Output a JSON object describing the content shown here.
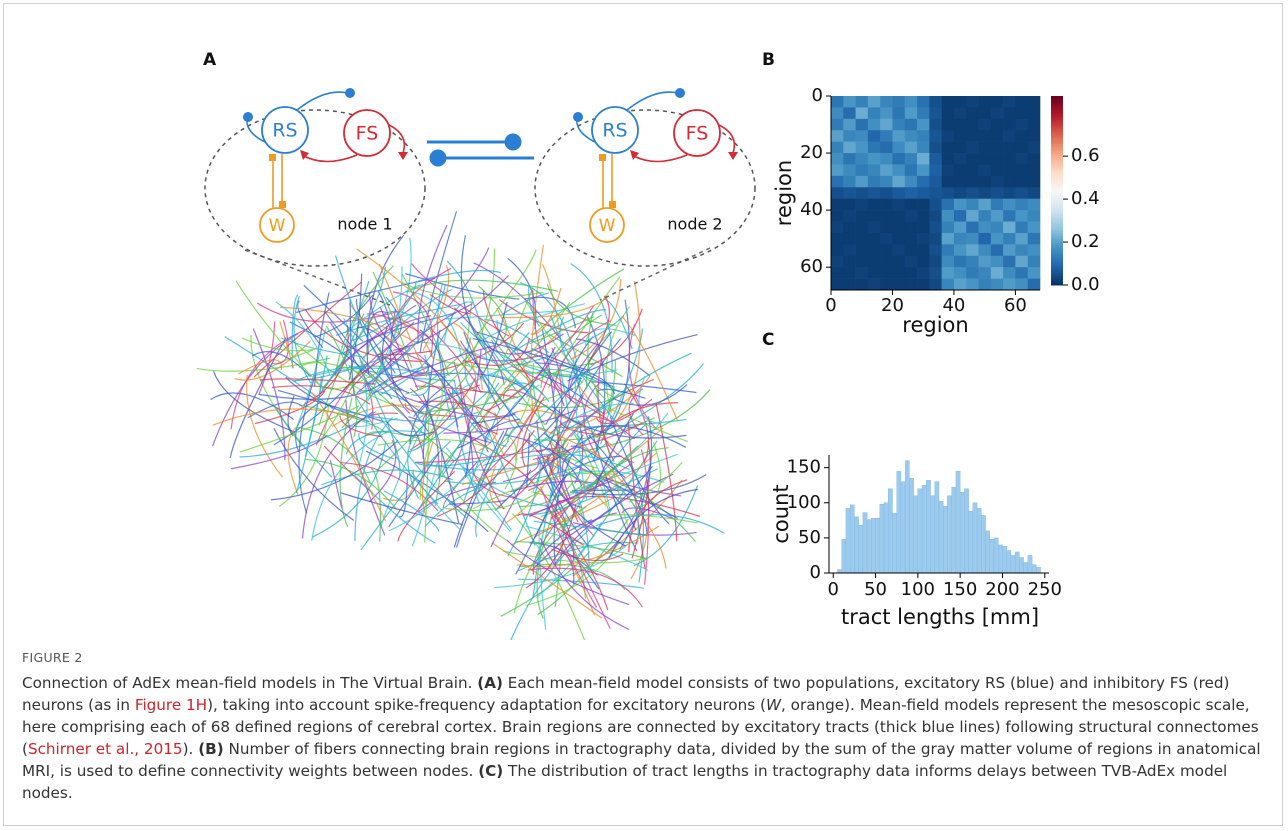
{
  "panels": [
    "A",
    "B",
    "C"
  ],
  "diagram": {
    "node1": {
      "rs": "RS",
      "fs": "FS",
      "w": "W",
      "label": "node 1"
    },
    "node2": {
      "rs": "RS",
      "fs": "FS",
      "w": "W",
      "label": "node 2"
    }
  },
  "chart_data": [
    {
      "type": "heatmap",
      "xlabel": "region",
      "ylabel": "region",
      "xbins": [
        0,
        4,
        8,
        12,
        16,
        20,
        24,
        28,
        32,
        36,
        40,
        44,
        48,
        52,
        56,
        60,
        64,
        68
      ],
      "ybins": [
        0,
        4,
        8,
        12,
        16,
        20,
        24,
        28,
        32,
        36,
        40,
        44,
        48,
        52,
        56,
        60,
        64,
        68
      ],
      "values": [
        [
          0.12,
          0.18,
          0.14,
          0.2,
          0.15,
          0.13,
          0.17,
          0.11,
          0.05,
          0.02,
          0.02,
          0.03,
          0.02,
          0.02,
          0.03,
          0.02,
          0.02
        ],
        [
          0.16,
          0.1,
          0.22,
          0.14,
          0.18,
          0.12,
          0.19,
          0.13,
          0.06,
          0.02,
          0.03,
          0.02,
          0.02,
          0.03,
          0.02,
          0.02,
          0.02
        ],
        [
          0.13,
          0.19,
          0.11,
          0.17,
          0.21,
          0.14,
          0.12,
          0.18,
          0.05,
          0.02,
          0.02,
          0.02,
          0.03,
          0.02,
          0.02,
          0.03,
          0.02
        ],
        [
          0.2,
          0.15,
          0.16,
          0.09,
          0.13,
          0.19,
          0.16,
          0.14,
          0.06,
          0.03,
          0.02,
          0.02,
          0.02,
          0.02,
          0.03,
          0.02,
          0.02
        ],
        [
          0.14,
          0.21,
          0.18,
          0.12,
          0.1,
          0.16,
          0.2,
          0.15,
          0.05,
          0.02,
          0.02,
          0.03,
          0.02,
          0.02,
          0.02,
          0.02,
          0.03
        ],
        [
          0.17,
          0.12,
          0.15,
          0.18,
          0.16,
          0.11,
          0.14,
          0.22,
          0.07,
          0.02,
          0.03,
          0.02,
          0.02,
          0.02,
          0.02,
          0.03,
          0.02
        ],
        [
          0.19,
          0.16,
          0.13,
          0.15,
          0.2,
          0.17,
          0.12,
          0.18,
          0.08,
          0.03,
          0.02,
          0.02,
          0.03,
          0.02,
          0.02,
          0.02,
          0.02
        ],
        [
          0.11,
          0.14,
          0.19,
          0.13,
          0.15,
          0.21,
          0.16,
          0.1,
          0.07,
          0.02,
          0.02,
          0.02,
          0.02,
          0.03,
          0.02,
          0.02,
          0.02
        ],
        [
          0.05,
          0.06,
          0.05,
          0.06,
          0.05,
          0.07,
          0.08,
          0.07,
          0.06,
          0.05,
          0.04,
          0.05,
          0.04,
          0.05,
          0.04,
          0.05,
          0.04
        ],
        [
          0.02,
          0.02,
          0.03,
          0.02,
          0.02,
          0.03,
          0.02,
          0.02,
          0.05,
          0.11,
          0.18,
          0.15,
          0.2,
          0.13,
          0.17,
          0.14,
          0.16
        ],
        [
          0.02,
          0.03,
          0.02,
          0.02,
          0.02,
          0.02,
          0.03,
          0.02,
          0.04,
          0.17,
          0.1,
          0.21,
          0.14,
          0.19,
          0.12,
          0.18,
          0.15
        ],
        [
          0.03,
          0.02,
          0.02,
          0.03,
          0.02,
          0.02,
          0.02,
          0.02,
          0.05,
          0.14,
          0.19,
          0.11,
          0.17,
          0.15,
          0.22,
          0.13,
          0.18
        ],
        [
          0.02,
          0.02,
          0.02,
          0.02,
          0.03,
          0.02,
          0.02,
          0.03,
          0.04,
          0.2,
          0.15,
          0.16,
          0.09,
          0.18,
          0.14,
          0.2,
          0.12
        ],
        [
          0.02,
          0.03,
          0.02,
          0.02,
          0.02,
          0.03,
          0.02,
          0.02,
          0.05,
          0.13,
          0.18,
          0.21,
          0.16,
          0.1,
          0.19,
          0.15,
          0.17
        ],
        [
          0.03,
          0.02,
          0.02,
          0.02,
          0.02,
          0.02,
          0.03,
          0.02,
          0.04,
          0.16,
          0.12,
          0.14,
          0.19,
          0.17,
          0.11,
          0.21,
          0.14
        ],
        [
          0.02,
          0.02,
          0.03,
          0.02,
          0.02,
          0.02,
          0.02,
          0.03,
          0.05,
          0.19,
          0.17,
          0.13,
          0.15,
          0.22,
          0.16,
          0.12,
          0.18
        ],
        [
          0.02,
          0.02,
          0.02,
          0.03,
          0.02,
          0.02,
          0.02,
          0.02,
          0.04,
          0.15,
          0.2,
          0.18,
          0.14,
          0.16,
          0.19,
          0.17,
          0.1
        ]
      ],
      "xlim": [
        0,
        68
      ],
      "ylim": [
        68,
        0
      ],
      "xticks": [
        0,
        20,
        40,
        60
      ],
      "yticks": [
        0,
        20,
        40,
        60
      ],
      "colormap": "RdBu_r",
      "clim": [
        0,
        0.88
      ],
      "cticks": [
        {
          "value": 0,
          "label": "0.0"
        },
        {
          "value": 0.2,
          "label": "0.2"
        },
        {
          "value": 0.4,
          "label": "0.4"
        },
        {
          "value": 0.6,
          "label": "0.6"
        }
      ]
    },
    {
      "type": "histogram",
      "xlabel": "tract lengths [mm]",
      "ylabel": "count",
      "color": "#9ccbee",
      "bins": [
        0,
        5,
        10,
        15,
        20,
        25,
        30,
        35,
        40,
        45,
        50,
        55,
        60,
        65,
        70,
        75,
        80,
        85,
        90,
        95,
        100,
        105,
        110,
        115,
        120,
        125,
        130,
        135,
        140,
        145,
        150,
        155,
        160,
        165,
        170,
        175,
        180,
        185,
        190,
        195,
        200,
        205,
        210,
        215,
        220,
        225,
        230,
        235,
        240,
        245,
        250
      ],
      "values": [
        0,
        5,
        48,
        92,
        97,
        80,
        68,
        86,
        76,
        78,
        78,
        98,
        100,
        120,
        85,
        145,
        130,
        160,
        135,
        110,
        120,
        125,
        132,
        110,
        130,
        102,
        95,
        110,
        122,
        145,
        115,
        120,
        88,
        100,
        92,
        82,
        60,
        48,
        50,
        40,
        38,
        32,
        25,
        30,
        22,
        15,
        25,
        12,
        8,
        0
      ],
      "xlim": [
        -5,
        255
      ],
      "ylim": [
        0,
        168
      ],
      "xticks": [
        0,
        50,
        100,
        150,
        200,
        250
      ],
      "yticks": [
        0,
        50,
        100,
        150
      ]
    }
  ],
  "caption": {
    "label": "FIGURE 2",
    "segments": [
      "Connection of AdEx mean-field models in The Virtual Brain. ",
      "(A)",
      " Each mean-field model consists of two populations, excitatory RS (blue) and inhibitory FS (red) neurons (as in ",
      "Figure 1H",
      "), taking into account spike-frequency adaptation for excitatory neurons (",
      "W",
      ", orange). Mean-field models represent the mesoscopic scale, here comprising each of 68 defined regions of cerebral cortex. Brain regions are connected by excitatory tracts (thick blue lines) following structural connectomes (",
      "Schirner et al., 2015",
      "). ",
      "(B)",
      " Number of fibers connecting brain regions in tractography data, divided by the sum of the gray matter volume of regions in anatomical MRI, is used to define connectivity weights between nodes. ",
      "(C)",
      " The distribution of tract lengths in tractography data informs delays between TVB-AdEx model nodes."
    ]
  }
}
